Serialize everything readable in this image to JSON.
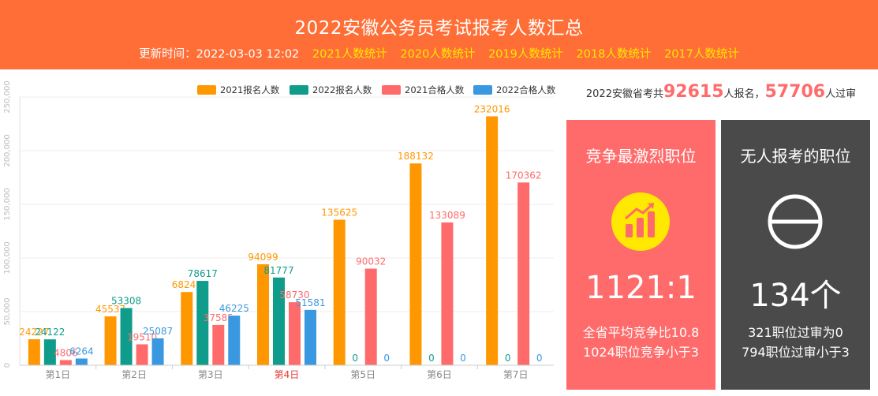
{
  "header": {
    "title": "2022安徽公务员考试报考人数汇总",
    "update_time": "更新时间：2022-03-03 12:02",
    "year_links": [
      "2021人数统计",
      "2020人数统计",
      "2019人数统计",
      "2018人数统计",
      "2017人数统计"
    ],
    "colors": {
      "background": "#ff6e36",
      "link": "#ffe900"
    }
  },
  "summary": {
    "prefix": "2022安徽省考共",
    "applicants": "92615",
    "middle": "人报名，",
    "approved": "57706",
    "suffix": "人过审"
  },
  "cards": {
    "competitive": {
      "title": "竞争最激烈职位",
      "icon": "bar-chart-up-icon",
      "big": "1121:1",
      "line1": "全省平均竞争比10.8",
      "line2": "1024职位竞争小于3",
      "color": "#ff6b6b"
    },
    "no_applicant": {
      "title": "无人报考的职位",
      "icon": "minus-circle-icon",
      "big": "134个",
      "line1": "321职位过审为0",
      "line2": "794职位过审小于3",
      "color": "#4a4a4a"
    }
  },
  "chart_data": {
    "type": "bar",
    "categories": [
      "第1日",
      "第2日",
      "第3日",
      "第4日",
      "第5日",
      "第6日",
      "第7日"
    ],
    "highlight_category": "第4日",
    "series": [
      {
        "name": "2021报名人数",
        "color": "#ff9800",
        "values": [
          24227,
          45537,
          68241,
          94099,
          135625,
          188132,
          232016
        ]
      },
      {
        "name": "2022报名人数",
        "color": "#0f9c8a",
        "values": [
          24122,
          53308,
          78617,
          81777,
          0,
          0,
          0
        ]
      },
      {
        "name": "2021合格人数",
        "color": "#ff6b6b",
        "values": [
          4806,
          19510,
          37585,
          58730,
          90032,
          133089,
          170362
        ]
      },
      {
        "name": "2022合格人数",
        "color": "#3a98e0",
        "values": [
          6264,
          25087,
          46225,
          51581,
          0,
          0,
          0
        ]
      }
    ],
    "y_ticks": [
      "0",
      "50,000",
      "100,000",
      "150,000",
      "200,000",
      "250,000"
    ],
    "ylim": [
      0,
      250000
    ],
    "grid": true,
    "legend_position": "top-right"
  }
}
